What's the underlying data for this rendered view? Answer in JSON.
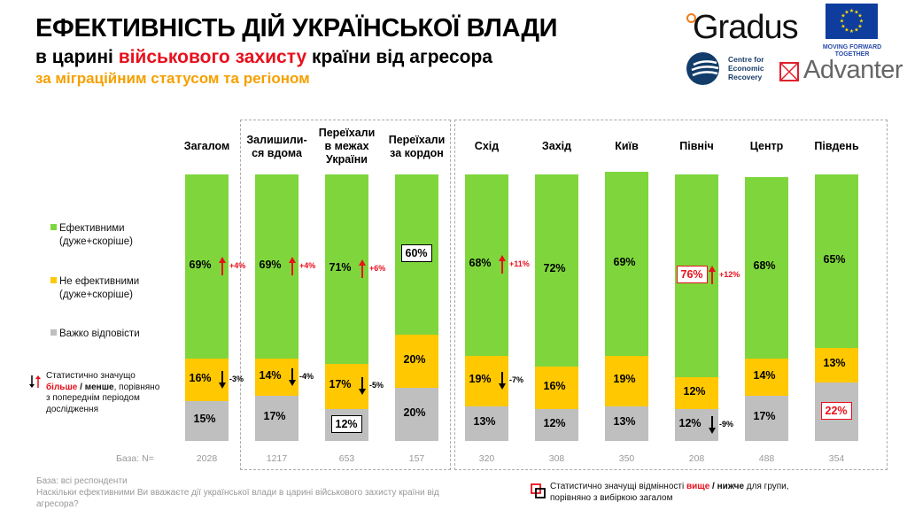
{
  "header": {
    "title": "ЕФЕКТИВНІСТЬ ДІЙ УКРАЇНСЬКОЇ ВЛАДИ",
    "subtitle_pre": "в царині ",
    "subtitle_highlight": "військового захисту",
    "subtitle_post": " країни від агресора",
    "subtitle2": "за міграційним статусом та регіоном"
  },
  "logos": {
    "gradus": "Gradus",
    "eu_tagline_1": "MOVING FORWARD",
    "eu_tagline_2": "TOGETHER",
    "cer_1": "Centre for",
    "cer_2": "Economic",
    "cer_3": "Recovery",
    "advanter": "Advanter"
  },
  "colors": {
    "effective": "#7ed63c",
    "not_effective": "#ffc800",
    "hard_to_say": "#bfbfbf",
    "up": "#e8101c",
    "down": "#000000"
  },
  "legend": {
    "items": [
      {
        "line1": "Ефективними",
        "line2": "(дуже+скоріше)"
      },
      {
        "line1": "Не ефективними",
        "line2": "(дуже+скоріше)"
      },
      {
        "line1": "Важко відповісти",
        "line2": ""
      }
    ],
    "note_1": "Статистично значущо",
    "note_more": "більше",
    "note_sep": " / ",
    "note_less": "менше",
    "note_2": ", порівняно",
    "note_3": "з попереднім періодом",
    "note_4": "дослідження"
  },
  "base_label": "База: N=",
  "footer": {
    "line1": "База: всі респонденти",
    "line2": "Наскільки ефективними Ви вважаєте дії української влади в царині військового захисту країни від",
    "line3": "агресора?",
    "sig_pre": "Статистично значущі відмінності ",
    "sig_higher": "вище",
    "sig_sep": " / ",
    "sig_lower": "нижче",
    "sig_post": " для групи,",
    "sig_line2": "порівняно з вибіркою загалом"
  },
  "chart_data": {
    "type": "bar",
    "stacked": true,
    "percent": true,
    "ylim": [
      0,
      100
    ],
    "series_names": [
      "Ефективними (дуже+скоріше)",
      "Не ефективними (дуже+скоріше)",
      "Важко відповісти"
    ],
    "categories": [
      {
        "label": "Загалом",
        "n": "2028",
        "effective": 69,
        "not_effective": 16,
        "hard": 15,
        "eff_change": "+4%",
        "not_change": "-3%",
        "hard_change": null,
        "eff_mark": null,
        "not_mark": null,
        "hard_mark": null
      },
      {
        "label": "Залишили-\nся вдома",
        "n": "1217",
        "effective": 69,
        "not_effective": 14,
        "hard": 17,
        "eff_change": "+4%",
        "not_change": "-4%",
        "hard_change": null,
        "eff_mark": null,
        "not_mark": null,
        "hard_mark": null
      },
      {
        "label": "Переїхали\nв межах\nУкраїни",
        "n": "653",
        "effective": 71,
        "not_effective": 17,
        "hard": 12,
        "eff_change": "+6%",
        "not_change": "-5%",
        "hard_change": null,
        "eff_mark": null,
        "not_mark": null,
        "hard_mark": "lower"
      },
      {
        "label": "Переїхали\nза кордон",
        "n": "157",
        "effective": 60,
        "not_effective": 20,
        "hard": 20,
        "eff_change": null,
        "not_change": null,
        "hard_change": null,
        "eff_mark": "lower",
        "not_mark": null,
        "hard_mark": null
      },
      {
        "label": "Схід",
        "n": "320",
        "effective": 68,
        "not_effective": 19,
        "hard": 13,
        "eff_change": "+11%",
        "not_change": "-7%",
        "hard_change": null,
        "eff_mark": null,
        "not_mark": null,
        "hard_mark": null
      },
      {
        "label": "Захід",
        "n": "308",
        "effective": 72,
        "not_effective": 16,
        "hard": 12,
        "eff_change": null,
        "not_change": null,
        "hard_change": null,
        "eff_mark": null,
        "not_mark": null,
        "hard_mark": null
      },
      {
        "label": "Київ",
        "n": "350",
        "effective": 69,
        "not_effective": 19,
        "hard": 13,
        "eff_change": null,
        "not_change": null,
        "hard_change": null,
        "eff_mark": null,
        "not_mark": null,
        "hard_mark": null
      },
      {
        "label": "Північ",
        "n": "208",
        "effective": 76,
        "not_effective": 12,
        "hard": 12,
        "eff_change": "+12%",
        "not_change": null,
        "hard_change": "-9%",
        "eff_mark": "higher",
        "not_mark": null,
        "hard_mark": null
      },
      {
        "label": "Центр",
        "n": "488",
        "effective": 68,
        "not_effective": 14,
        "hard": 17,
        "eff_change": null,
        "not_change": null,
        "hard_change": null,
        "eff_mark": null,
        "not_mark": null,
        "hard_mark": null
      },
      {
        "label": "Південь",
        "n": "354",
        "effective": 65,
        "not_effective": 13,
        "hard": 22,
        "eff_change": null,
        "not_change": null,
        "hard_change": null,
        "eff_mark": null,
        "not_mark": null,
        "hard_mark": "higher"
      }
    ],
    "groups": [
      {
        "name": "migration",
        "members": [
          1,
          2,
          3
        ]
      },
      {
        "name": "region",
        "members": [
          4,
          5,
          6,
          7,
          8,
          9
        ]
      }
    ],
    "legend_position": "left"
  }
}
